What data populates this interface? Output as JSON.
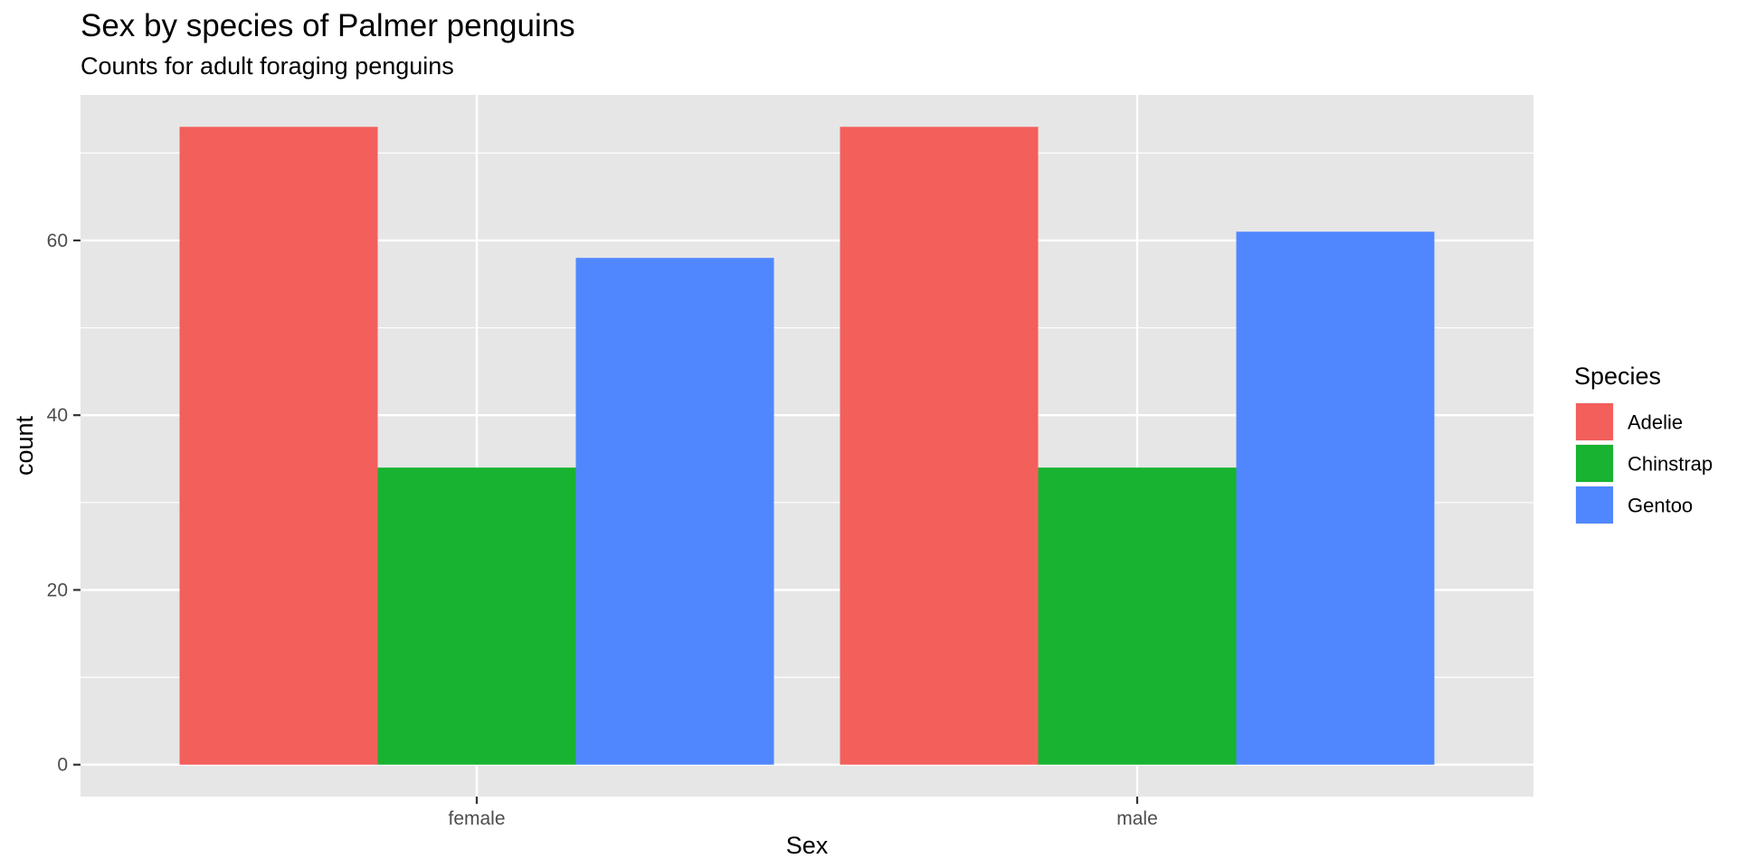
{
  "chart_data": {
    "type": "bar",
    "title": "Sex by species of Palmer penguins",
    "subtitle": "Counts for adult foraging penguins",
    "xlabel": "Sex",
    "ylabel": "count",
    "categories": [
      "female",
      "male"
    ],
    "series": [
      {
        "name": "Adelie",
        "values": [
          73,
          73
        ],
        "color": "#F35F5B"
      },
      {
        "name": "Chinstrap",
        "values": [
          34,
          34
        ],
        "color": "#18B331"
      },
      {
        "name": "Gentoo",
        "values": [
          58,
          61
        ],
        "color": "#5087FF"
      }
    ],
    "ylim": [
      -3.65,
      76.65
    ],
    "yticks": [
      0,
      20,
      40,
      60
    ],
    "y_minor_ticks": [
      10,
      30,
      50,
      70
    ],
    "grid": true,
    "legend": {
      "title": "Species",
      "position": "right"
    },
    "panel_background": "#E6E6E6",
    "grid_color": "#FFFFFF"
  }
}
